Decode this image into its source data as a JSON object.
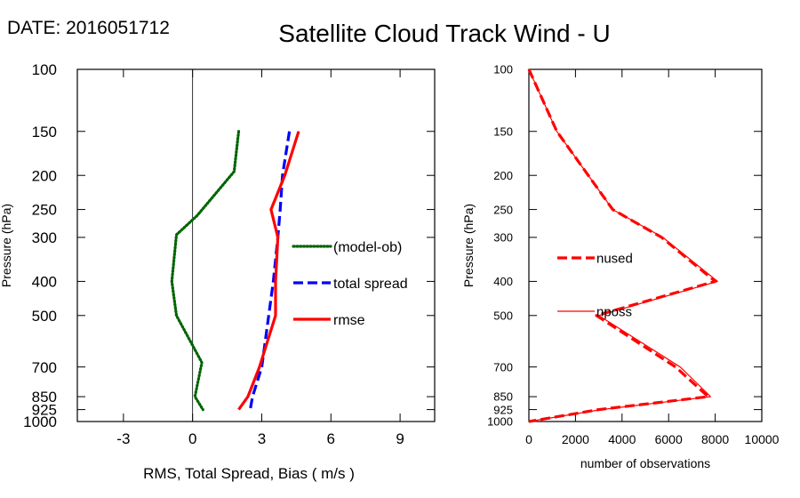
{
  "header": {
    "date_label": "DATE: 2016051712",
    "title": "Satellite Cloud Track Wind - U"
  },
  "chart_data": [
    {
      "type": "line",
      "xlabel": "RMS, Total Spread, Bias ( m/s )",
      "ylabel": "Pressure (hPa)",
      "xlim": [
        -5,
        10.5
      ],
      "ylim": [
        1000,
        100
      ],
      "y_scale": "log",
      "xticks": [
        -3,
        0,
        3,
        6,
        9
      ],
      "yticks": [
        100,
        150,
        200,
        250,
        300,
        400,
        500,
        700,
        850,
        925,
        1000
      ],
      "reference_line_x": 0,
      "legend_position": "right-middle",
      "series": [
        {
          "name": "(model-ob)",
          "color": "#006400",
          "style": "dotted",
          "points": [
            [
              2.0,
              150
            ],
            [
              1.8,
              195
            ],
            [
              0.2,
              260
            ],
            [
              -0.7,
              295
            ],
            [
              -0.9,
              400
            ],
            [
              -0.7,
              500
            ],
            [
              0.4,
              680
            ],
            [
              0.1,
              850
            ],
            [
              0.45,
              925
            ]
          ]
        },
        {
          "name": "total spread",
          "color": "#0000ff",
          "style": "dashed",
          "points": [
            [
              4.2,
              150
            ],
            [
              3.9,
              200
            ],
            [
              3.8,
              250
            ],
            [
              3.7,
              300
            ],
            [
              3.5,
              400
            ],
            [
              3.3,
              500
            ],
            [
              3.0,
              700
            ],
            [
              2.6,
              850
            ],
            [
              2.5,
              925
            ]
          ]
        },
        {
          "name": "rmse",
          "color": "#ff0000",
          "style": "solid",
          "points": [
            [
              4.6,
              150
            ],
            [
              4.0,
              200
            ],
            [
              3.4,
              250
            ],
            [
              3.7,
              300
            ],
            [
              3.6,
              400
            ],
            [
              3.6,
              500
            ],
            [
              2.9,
              700
            ],
            [
              2.4,
              850
            ],
            [
              2.0,
              925
            ]
          ]
        }
      ]
    },
    {
      "type": "line",
      "xlabel": "number of observations",
      "ylabel": "Pressure (hPa)",
      "xlim": [
        0,
        10000
      ],
      "ylim": [
        1000,
        100
      ],
      "y_scale": "log",
      "xticks": [
        0,
        2000,
        4000,
        6000,
        8000,
        10000
      ],
      "yticks": [
        100,
        150,
        200,
        250,
        300,
        400,
        500,
        700,
        850,
        925,
        1000
      ],
      "legend_position": "left-middle",
      "series": [
        {
          "name": "nused",
          "color": "#ff0000",
          "style": "dashed",
          "points": [
            [
              0,
              100
            ],
            [
              1200,
              150
            ],
            [
              3600,
              250
            ],
            [
              5700,
              300
            ],
            [
              8000,
              400
            ],
            [
              2900,
              500
            ],
            [
              6300,
              700
            ],
            [
              7700,
              850
            ],
            [
              3000,
              925
            ],
            [
              0,
              1000
            ]
          ]
        },
        {
          "name": "nposs",
          "color": "#ff0000",
          "style": "thin",
          "points": [
            [
              0,
              100
            ],
            [
              1200,
              150
            ],
            [
              3600,
              250
            ],
            [
              5750,
              300
            ],
            [
              8100,
              400
            ],
            [
              3000,
              500
            ],
            [
              6500,
              700
            ],
            [
              7800,
              850
            ],
            [
              3100,
              925
            ],
            [
              0,
              1000
            ]
          ]
        }
      ]
    }
  ]
}
